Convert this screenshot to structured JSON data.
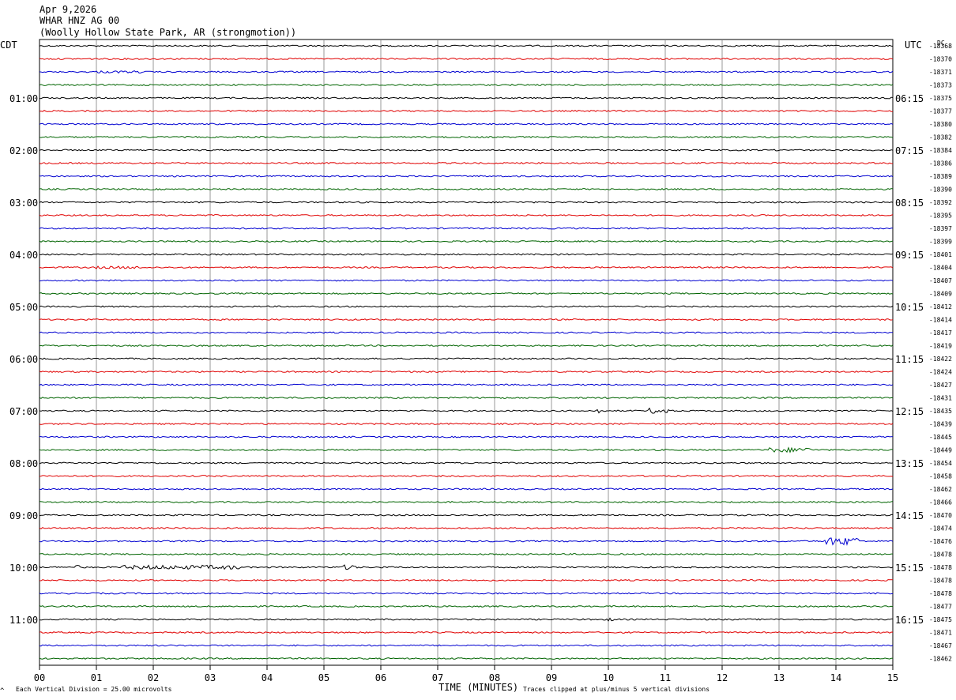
{
  "header": {
    "date": "Apr 9,2026",
    "station": "WHAR HNZ AG 00",
    "location": "(Woolly Hollow State Park, AR (strongmotion))"
  },
  "left_timezone": "CDT",
  "right_timezone": "UTC",
  "dc_label": "DC",
  "footer": {
    "mark": "^",
    "scale": "Each Vertical Division =   25.00 microvolts",
    "xlabel": "TIME (MINUTES)",
    "clip_note": "Traces clipped at plus/minus 5 vertical divisions"
  },
  "colors": {
    "cycle": [
      "#000000",
      "#e00000",
      "#0000d0",
      "#006400"
    ],
    "grid": "#808080"
  },
  "chart_data": {
    "type": "line",
    "title": "WHAR HNZ AG 00",
    "xlabel": "TIME (MINUTES)",
    "xlim": [
      0,
      15
    ],
    "x_ticks": [
      "00",
      "01",
      "02",
      "03",
      "04",
      "05",
      "06",
      "07",
      "08",
      "09",
      "10",
      "11",
      "12",
      "13",
      "14",
      "15"
    ],
    "rows_per_hour": 4,
    "left_hour_labels": [
      "01:00",
      "02:00",
      "03:00",
      "04:00",
      "05:00",
      "06:00",
      "07:00",
      "08:00",
      "09:00",
      "10:00",
      "11:00"
    ],
    "right_hour_labels": [
      "06:15",
      "07:15",
      "08:15",
      "09:15",
      "10:15",
      "11:15",
      "12:15",
      "13:15",
      "14:15",
      "15:15",
      "16:15"
    ],
    "dc_offsets": [
      "-18368",
      "-18370",
      "-18371",
      "-18373",
      "-18375",
      "-18377",
      "-18380",
      "-18382",
      "-18384",
      "-18386",
      "-18389",
      "-18390",
      "-18392",
      "-18395",
      "-18397",
      "-18399",
      "-18401",
      "-18404",
      "-18407",
      "-18409",
      "-18412",
      "-18414",
      "-18417",
      "-18419",
      "-18422",
      "-18424",
      "-18427",
      "-18431",
      "-18435",
      "-18439",
      "-18445",
      "-18449",
      "-18454",
      "-18458",
      "-18462",
      "-18466",
      "-18470",
      "-18474",
      "-18476",
      "-18478",
      "-18478",
      "-18478",
      "-18478",
      "-18477",
      "-18475",
      "-18471",
      "-18467",
      "-18462"
    ],
    "events": [
      {
        "row": 2,
        "start_min": 1.0,
        "end_min": 1.8,
        "amp": 1.5
      },
      {
        "row": 17,
        "start_min": 0.9,
        "end_min": 1.8,
        "amp": 1.6
      },
      {
        "row": 28,
        "start_min": 9.8,
        "end_min": 9.85,
        "amp": 4.0
      },
      {
        "row": 28,
        "start_min": 10.7,
        "end_min": 11.1,
        "amp": 3.5
      },
      {
        "row": 31,
        "start_min": 12.8,
        "end_min": 13.6,
        "amp": 3.0
      },
      {
        "row": 38,
        "start_min": 13.8,
        "end_min": 14.4,
        "amp": 5.0
      },
      {
        "row": 40,
        "start_min": 0.6,
        "end_min": 0.75,
        "amp": 2.5
      },
      {
        "row": 40,
        "start_min": 1.4,
        "end_min": 3.5,
        "amp": 2.6
      },
      {
        "row": 40,
        "start_min": 5.3,
        "end_min": 5.6,
        "amp": 3.0
      },
      {
        "row": 44,
        "start_min": 9.9,
        "end_min": 10.1,
        "amp": 2.0
      }
    ]
  }
}
